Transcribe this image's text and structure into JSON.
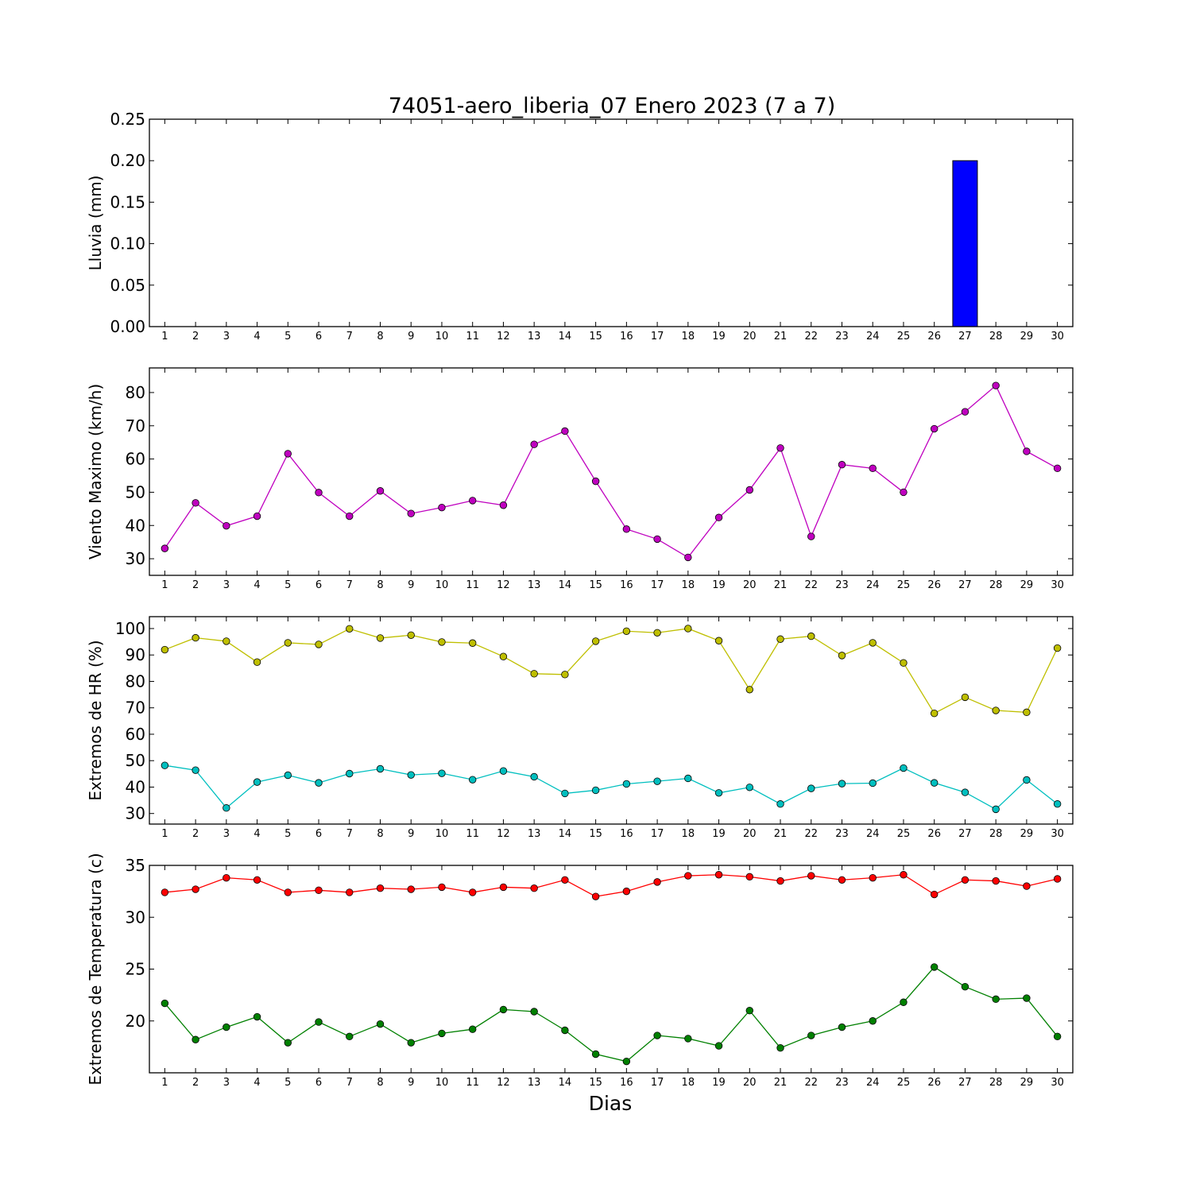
{
  "figure": {
    "title": "74051-aero_liberia_07 Enero 2023  (7 a 7)",
    "xlabel": "Dias"
  },
  "chart_data": [
    {
      "type": "bar",
      "ylabel": "Lluvia (mm)",
      "categories": [
        1,
        2,
        3,
        4,
        5,
        6,
        7,
        8,
        9,
        10,
        11,
        12,
        13,
        14,
        15,
        16,
        17,
        18,
        19,
        20,
        21,
        22,
        23,
        24,
        25,
        26,
        27,
        28,
        29,
        30
      ],
      "ylim": [
        0,
        0.25
      ],
      "yticks": [
        "0.00",
        "0.05",
        "0.10",
        "0.15",
        "0.20",
        "0.25"
      ],
      "series": [
        {
          "color": "#0000ff",
          "values": [
            0,
            0,
            0,
            0,
            0,
            0,
            0,
            0,
            0,
            0,
            0,
            0,
            0,
            0,
            0,
            0,
            0,
            0,
            0,
            0,
            0,
            0,
            0,
            0,
            0,
            0,
            0.2,
            0,
            0,
            0
          ]
        }
      ]
    },
    {
      "type": "line",
      "ylabel": "Viento Maximo (km/h)",
      "categories": [
        1,
        2,
        3,
        4,
        5,
        6,
        7,
        8,
        9,
        10,
        11,
        12,
        13,
        14,
        15,
        16,
        17,
        18,
        19,
        20,
        21,
        22,
        23,
        24,
        25,
        26,
        27,
        28,
        29,
        30
      ],
      "ylim": [
        25,
        87.4
      ],
      "yticks": [
        "30",
        "40",
        "50",
        "60",
        "70",
        "80"
      ],
      "series": [
        {
          "color": "#bf00bf",
          "values": [
            33.1,
            46.8,
            39.9,
            42.8,
            61.6,
            49.9,
            42.8,
            50.4,
            43.6,
            45.4,
            47.5,
            46.1,
            64.4,
            68.4,
            53.3,
            38.9,
            35.9,
            30.4,
            42.4,
            50.7,
            63.3,
            36.7,
            58.3,
            57.2,
            50.0,
            69.1,
            74.2,
            82.1,
            62.3,
            57.2
          ]
        }
      ]
    },
    {
      "type": "line",
      "ylabel": "Extremos de HR (%)",
      "categories": [
        1,
        2,
        3,
        4,
        5,
        6,
        7,
        8,
        9,
        10,
        11,
        12,
        13,
        14,
        15,
        16,
        17,
        18,
        19,
        20,
        21,
        22,
        23,
        24,
        25,
        26,
        27,
        28,
        29,
        30
      ],
      "ylim": [
        26,
        104.5
      ],
      "yticks": [
        "30",
        "40",
        "50",
        "60",
        "70",
        "80",
        "90",
        "100"
      ],
      "series": [
        {
          "color": "#bfbf00",
          "values": [
            92,
            96.5,
            95.2,
            87.3,
            94.6,
            94,
            99.9,
            96.4,
            97.5,
            94.9,
            94.5,
            89.4,
            82.9,
            82.6,
            95.2,
            99,
            98.4,
            100,
            95.4,
            76.9,
            96,
            97.1,
            89.8,
            94.6,
            87,
            67.9,
            74,
            69,
            68.3,
            92.6
          ]
        },
        {
          "color": "#00bfbf",
          "values": [
            48.2,
            46.4,
            32.1,
            41.9,
            44.5,
            41.6,
            45.1,
            46.9,
            44.6,
            45.2,
            42.8,
            46.1,
            43.9,
            37.6,
            38.8,
            41.2,
            42.2,
            43.3,
            37.8,
            39.9,
            33.6,
            39.5,
            41.3,
            41.5,
            47.2,
            41.6,
            38,
            31.6,
            42.7,
            33.6
          ]
        }
      ]
    },
    {
      "type": "line",
      "ylabel": "Extremos de Temperatura (c)",
      "categories": [
        1,
        2,
        3,
        4,
        5,
        6,
        7,
        8,
        9,
        10,
        11,
        12,
        13,
        14,
        15,
        16,
        17,
        18,
        19,
        20,
        21,
        22,
        23,
        24,
        25,
        26,
        27,
        28,
        29,
        30
      ],
      "ylim": [
        15,
        35
      ],
      "yticks": [
        "20",
        "25",
        "30",
        "35"
      ],
      "series": [
        {
          "color": "#ff0000",
          "values": [
            32.4,
            32.7,
            33.8,
            33.6,
            32.4,
            32.6,
            32.4,
            32.8,
            32.7,
            32.9,
            32.4,
            32.9,
            32.8,
            33.6,
            32,
            32.5,
            33.4,
            34,
            34.1,
            33.9,
            33.5,
            34,
            33.6,
            33.8,
            34.1,
            32.2,
            33.6,
            33.5,
            33,
            33.7
          ]
        },
        {
          "color": "#008000",
          "values": [
            21.7,
            18.2,
            19.4,
            20.4,
            17.9,
            19.9,
            18.5,
            19.7,
            17.9,
            18.8,
            19.2,
            21.1,
            20.9,
            19.1,
            16.8,
            16.1,
            18.6,
            18.3,
            17.6,
            21,
            17.4,
            18.6,
            19.4,
            20,
            21.8,
            25.2,
            23.3,
            22.1,
            22.2,
            18.5
          ]
        }
      ]
    }
  ]
}
